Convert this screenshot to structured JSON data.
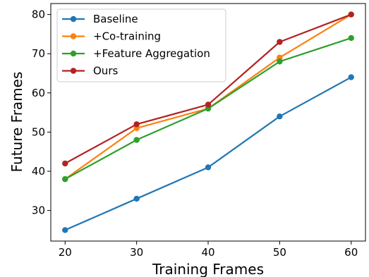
{
  "chart_data": {
    "type": "line",
    "title": "",
    "xlabel": "Training Frames",
    "ylabel": "Future Frames",
    "x": [
      20,
      30,
      40,
      50,
      60
    ],
    "xlim": [
      18,
      62
    ],
    "ylim": [
      22.2,
      82.8
    ],
    "xticks": [
      20,
      30,
      40,
      50,
      60
    ],
    "yticks": [
      30,
      40,
      50,
      60,
      70,
      80
    ],
    "grid": false,
    "legend_position": "top-left",
    "series": [
      {
        "name": "Baseline",
        "color": "#1f77b4",
        "values": [
          25,
          33,
          41,
          54,
          64
        ]
      },
      {
        "name": "+Co-training",
        "color": "#ff7f0e",
        "values": [
          38,
          51,
          56,
          69,
          80
        ]
      },
      {
        "name": "+Feature Aggregation",
        "color": "#2ca02c",
        "values": [
          38,
          48,
          56,
          68,
          74
        ]
      },
      {
        "name": "Ours",
        "color": "#b22222",
        "values": [
          42,
          52,
          57,
          73,
          80
        ]
      }
    ]
  }
}
